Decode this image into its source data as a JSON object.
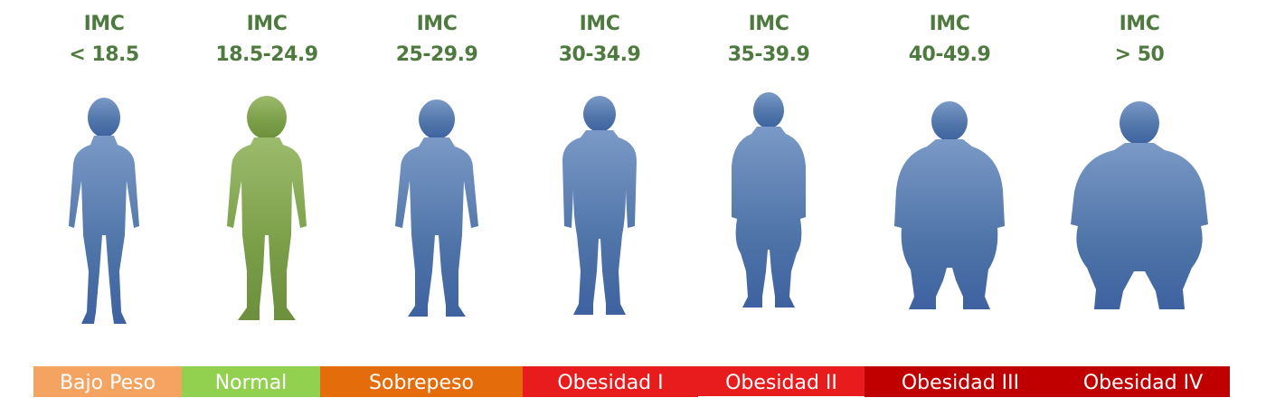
{
  "categories": [
    {
      "imc": "IMC",
      "range": "< 18.5",
      "label": "Bajo Peso",
      "color": "#f4a460",
      "figure": "blue"
    },
    {
      "imc": "IMC",
      "range": "18.5-24.9",
      "label": "Normal",
      "color": "#92d050",
      "figure": "green"
    },
    {
      "imc": "IMC",
      "range": "25-29.9",
      "label": "Sobrepeso",
      "color": "#e46c0a",
      "figure": "blue"
    },
    {
      "imc": "IMC",
      "range": "30-34.9",
      "label": "Obesidad I",
      "color": "#e81c1c",
      "figure": "blue"
    },
    {
      "imc": "IMC",
      "range": "35-39.9",
      "label": "Obesidad II",
      "color": "#e81c1c",
      "figure": "blue"
    },
    {
      "imc": "IMC",
      "range": "40-49.9",
      "label": "Obesidad III",
      "color": "#c00000",
      "figure": "blue"
    },
    {
      "imc": "IMC",
      "range": "> 50",
      "label": "Obesidad IV",
      "color": "#c00000",
      "figure": "blue"
    }
  ],
  "colors": {
    "imc_text": "#4f7a3f",
    "figure_blue": "#4a6fa5",
    "figure_green": "#7a9e48"
  }
}
